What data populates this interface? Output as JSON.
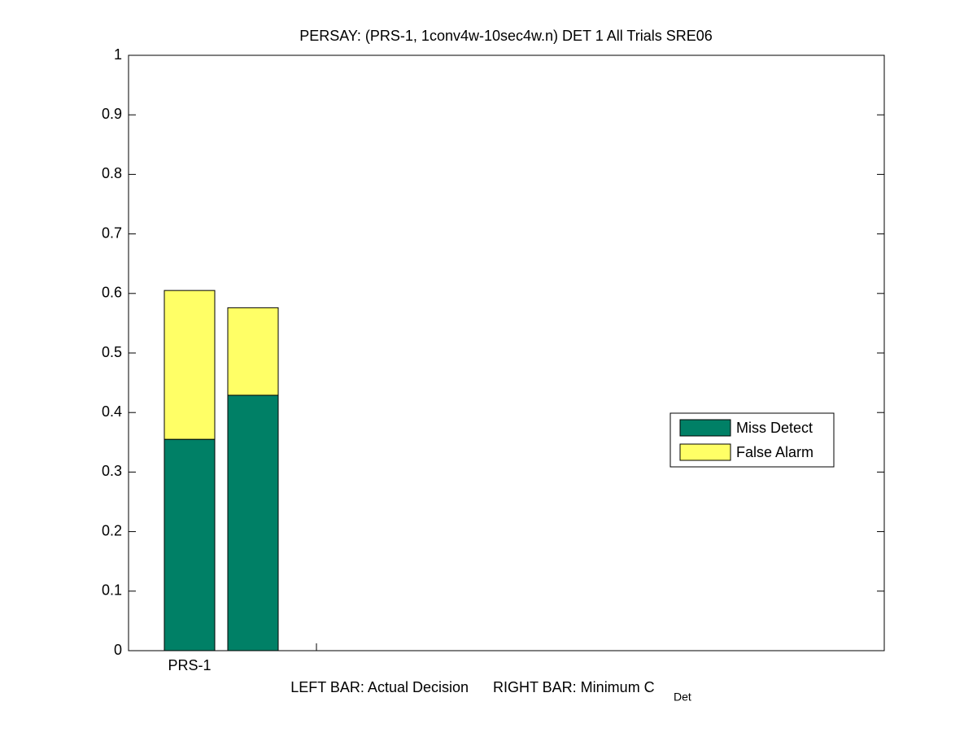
{
  "chart_data": {
    "type": "stacked_bar",
    "title": "PERSAY: (PRS-1, 1conv4w-10sec4w.n) DET 1 All Trials SRE06",
    "xlabel_left": "LEFT BAR: Actual Decision",
    "xlabel_right": "RIGHT BAR: Minimum C",
    "xlabel_subscript": "Det",
    "categories": [
      "PRS-1",
      null,
      null
    ],
    "series": [
      {
        "name": "Miss Detect",
        "color": "#008066",
        "values": [
          0.355,
          0.429,
          null
        ]
      },
      {
        "name": "False Alarm",
        "color": "#ffff66",
        "values": [
          0.25,
          0.147,
          null
        ]
      }
    ],
    "ylim": [
      0,
      1
    ],
    "yticks": [
      0,
      0.1,
      0.2,
      0.3,
      0.4,
      0.5,
      0.6,
      0.7,
      0.8,
      0.9,
      1
    ],
    "grid": false,
    "legend": "right"
  }
}
